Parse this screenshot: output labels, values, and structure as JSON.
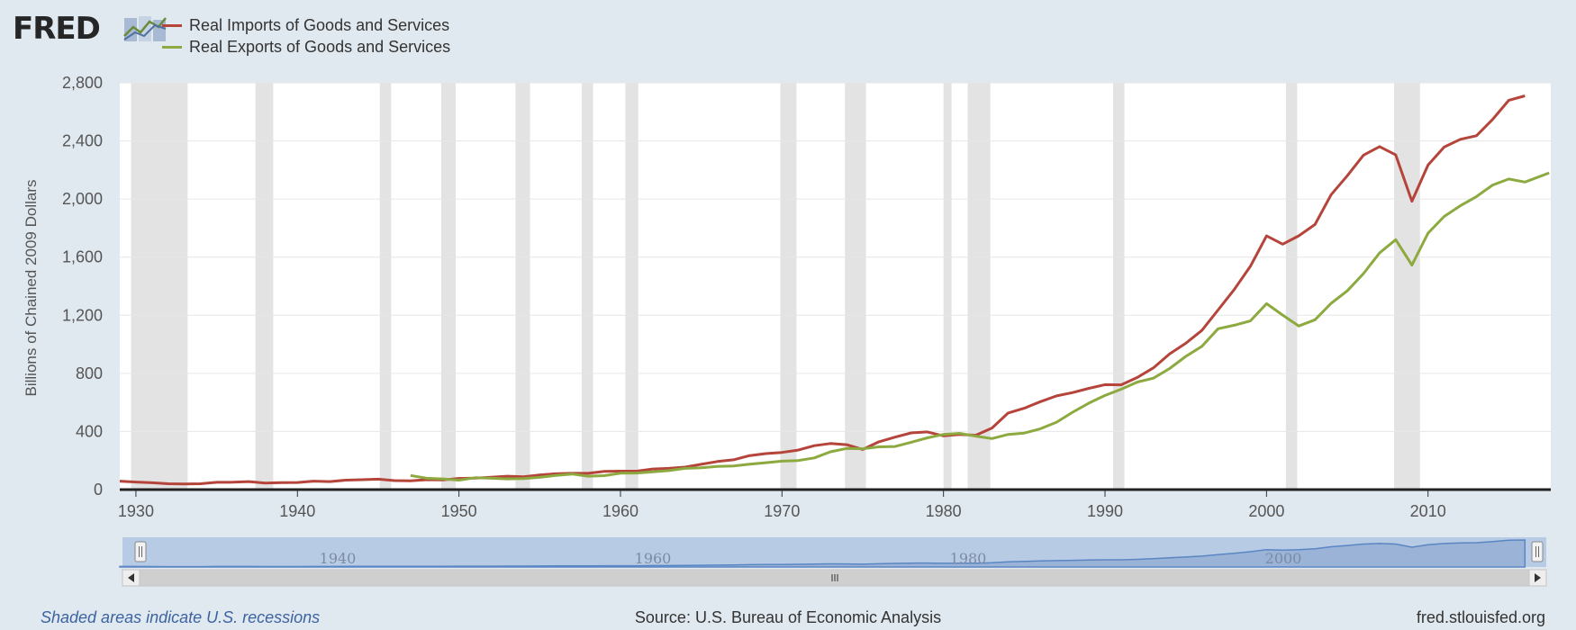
{
  "logo": {
    "text": "FRED"
  },
  "footer": {
    "note": "Shaded areas indicate U.S. recessions",
    "source": "Source: U.S. Bureau of Economic Analysis",
    "site": "fred.stlouisfed.org"
  },
  "navigator": {
    "labels": [
      "1940",
      "1960",
      "1980",
      "2000"
    ]
  },
  "colors": {
    "imports": "#b5443a",
    "exports": "#8caa3f",
    "recession": "#e3e3e3",
    "nav_fill": "#b8cbe4",
    "nav_line": "#5a86c4"
  },
  "chart_data": {
    "type": "line",
    "ylabel": "Billions of Chained 2009 Dollars",
    "xlim": [
      1929,
      2017.6
    ],
    "ylim": [
      0,
      2800
    ],
    "xticks": [
      1930,
      1940,
      1950,
      1960,
      1970,
      1980,
      1990,
      2000,
      2010
    ],
    "yticks": [
      0,
      400,
      800,
      1200,
      1600,
      2000,
      2400,
      2800
    ],
    "ytick_labels": [
      "0",
      "400",
      "800",
      "1,200",
      "1,600",
      "2,000",
      "2,400",
      "2,800"
    ],
    "grid": true,
    "legend_position": "top-left",
    "recessions": [
      [
        1929.7,
        1933.2
      ],
      [
        1937.4,
        1938.5
      ],
      [
        1945.1,
        1945.8
      ],
      [
        1948.9,
        1949.8
      ],
      [
        1953.5,
        1954.4
      ],
      [
        1957.6,
        1958.3
      ],
      [
        1960.3,
        1961.1
      ],
      [
        1969.9,
        1970.9
      ],
      [
        1973.9,
        1975.2
      ],
      [
        1980.0,
        1980.5
      ],
      [
        1981.5,
        1982.9
      ],
      [
        1990.5,
        1991.2
      ],
      [
        2001.2,
        2001.9
      ],
      [
        2007.9,
        2009.5
      ]
    ],
    "series": [
      {
        "name": "Real Imports of Goods and Services",
        "x": [
          1929,
          1930,
          1931,
          1932,
          1933,
          1934,
          1935,
          1936,
          1937,
          1938,
          1939,
          1940,
          1941,
          1942,
          1943,
          1944,
          1945,
          1946,
          1947,
          1948,
          1949,
          1950,
          1951,
          1952,
          1953,
          1954,
          1955,
          1956,
          1957,
          1958,
          1959,
          1960,
          1961,
          1962,
          1963,
          1964,
          1965,
          1966,
          1967,
          1968,
          1969,
          1970,
          1971,
          1972,
          1973,
          1974,
          1975,
          1976,
          1977,
          1978,
          1979,
          1980,
          1981,
          1982,
          1983,
          1984,
          1985,
          1986,
          1987,
          1988,
          1989,
          1990,
          1991,
          1992,
          1993,
          1994,
          1995,
          1996,
          1997,
          1998,
          1999,
          2000,
          2001,
          2002,
          2003,
          2004,
          2005,
          2006,
          2007,
          2008,
          2009,
          2010,
          2011,
          2012,
          2013,
          2014,
          2015,
          2016
        ],
        "values": [
          58,
          52,
          47,
          40,
          39,
          40,
          50,
          51,
          55,
          45,
          48,
          49,
          58,
          55,
          65,
          68,
          72,
          62,
          60,
          68,
          67,
          77,
          79,
          85,
          92,
          88,
          101,
          109,
          112,
          112,
          125,
          127,
          127,
          142,
          146,
          155,
          174,
          193,
          205,
          234,
          248,
          256,
          272,
          302,
          317,
          309,
          276,
          329,
          361,
          390,
          397,
          370,
          380,
          374,
          424,
          527,
          560,
          605,
          645,
          668,
          697,
          722,
          721,
          772,
          838,
          934,
          1007,
          1096,
          1236,
          1377,
          1537,
          1746,
          1689,
          1747,
          1825,
          2030,
          2160,
          2302,
          2361,
          2304,
          1985,
          2234,
          2358,
          2411,
          2436,
          2548,
          2680,
          2710
        ]
      },
      {
        "name": "Real Exports of Goods and Services",
        "x": [
          1947,
          1948,
          1949,
          1950,
          1951,
          1952,
          1953,
          1954,
          1955,
          1956,
          1957,
          1958,
          1959,
          1960,
          1961,
          1962,
          1963,
          1964,
          1965,
          1966,
          1967,
          1968,
          1969,
          1970,
          1971,
          1972,
          1973,
          1974,
          1975,
          1976,
          1977,
          1978,
          1979,
          1980,
          1981,
          1982,
          1983,
          1984,
          1985,
          1986,
          1987,
          1988,
          1989,
          1990,
          1991,
          1992,
          1993,
          1994,
          1995,
          1996,
          1997,
          1998,
          1999,
          2000,
          2001,
          2002,
          2003,
          2004,
          2005,
          2006,
          2007,
          2008,
          2009,
          2010,
          2011,
          2012,
          2013,
          2014,
          2015,
          2016,
          2017.5
        ],
        "values": [
          97,
          78,
          74,
          65,
          82,
          78,
          74,
          76,
          84,
          98,
          107,
          92,
          96,
          113,
          114,
          122,
          131,
          146,
          150,
          159,
          163,
          175,
          185,
          196,
          200,
          218,
          260,
          283,
          281,
          294,
          297,
          326,
          356,
          380,
          387,
          368,
          351,
          380,
          389,
          419,
          464,
          533,
          595,
          648,
          691,
          740,
          767,
          833,
          917,
          986,
          1107,
          1131,
          1161,
          1280,
          1201,
          1126,
          1169,
          1282,
          1368,
          1487,
          1629,
          1720,
          1545,
          1765,
          1880,
          1954,
          2017,
          2096,
          2138,
          2117,
          2180
        ]
      }
    ]
  }
}
